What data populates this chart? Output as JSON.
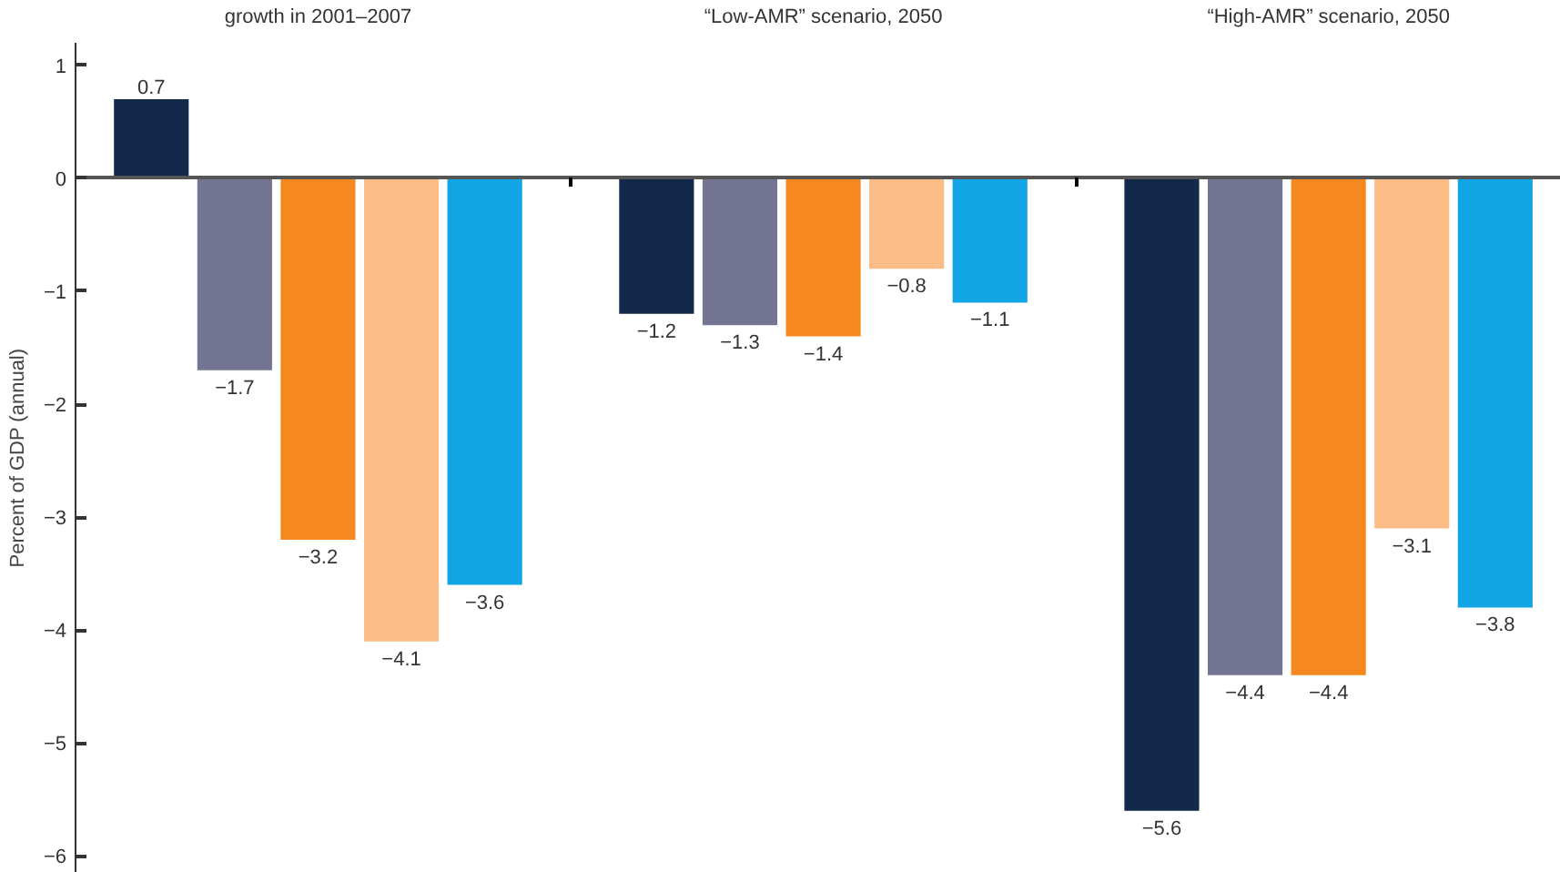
{
  "chart_data": {
    "type": "bar",
    "categories": [
      "growth in 2001–2007",
      "“Low-AMR” scenario, 2050",
      "“High-AMR” scenario, 2050"
    ],
    "ylabel": "Percent of GDP (annual)",
    "series": [
      {
        "color": "#12294b",
        "values": [
          0.7,
          -1.2,
          -5.6
        ],
        "value_labels": [
          "0.7",
          "−1.2",
          "−5.6"
        ]
      },
      {
        "color": "#737592",
        "values": [
          -1.7,
          -1.3,
          -4.4
        ],
        "value_labels": [
          "−1.7",
          "−1.3",
          "−4.4"
        ]
      },
      {
        "color": "#f5891f",
        "values": [
          -3.2,
          -1.4,
          -4.4
        ],
        "value_labels": [
          "−3.2",
          "−1.4",
          "−4.4"
        ]
      },
      {
        "color": "#fbbd85",
        "values": [
          -4.1,
          -0.8,
          -3.1
        ],
        "value_labels": [
          "−4.1",
          "−0.8",
          "−3.1"
        ]
      },
      {
        "color": "#12a5e6",
        "values": [
          -3.6,
          -1.1,
          -3.8
        ],
        "value_labels": [
          "−3.6",
          "−1.1",
          "−3.8"
        ]
      }
    ],
    "ylim": [
      -6.15,
      1.2
    ],
    "yticks": [
      1,
      0,
      {
        "value": -1,
        "label": "−1"
      },
      {
        "value": -2,
        "label": "−2"
      },
      {
        "value": -3,
        "label": "−3"
      },
      {
        "value": -4,
        "label": "−4"
      },
      {
        "value": -5,
        "label": "−5"
      },
      {
        "value": -6,
        "label": "−6"
      }
    ],
    "tick_labels": "y"
  }
}
